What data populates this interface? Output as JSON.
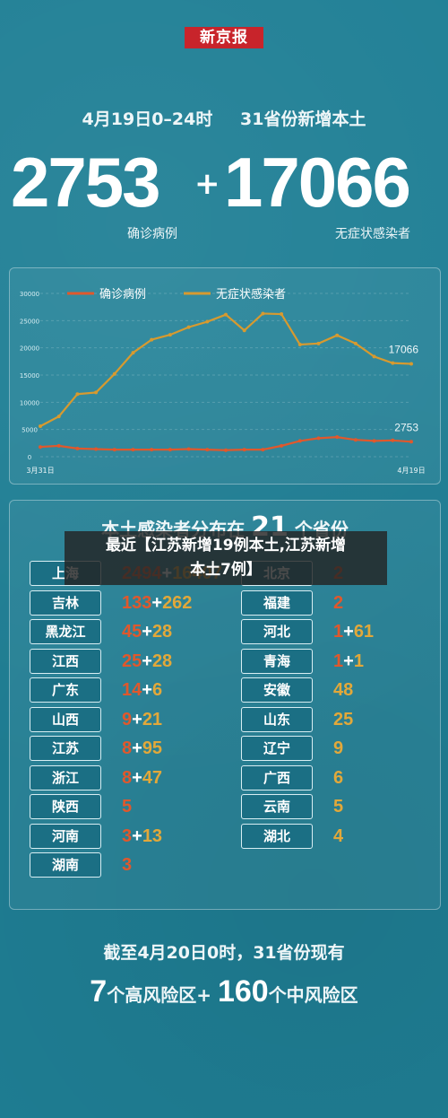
{
  "brand": {
    "logo_text": "新京报"
  },
  "header": {
    "date_text": "4月19日0–24时",
    "scope_text": "31省份新增本土",
    "confirmed_count": "2753",
    "plus": "+",
    "asymptomatic_count": "17066",
    "confirmed_label": "确诊病例",
    "asymptomatic_label": "无症状感染者"
  },
  "chart_data": {
    "type": "line",
    "x_start_label": "3月31日",
    "x_end_label": "4月19日",
    "ylim": [
      0,
      30000
    ],
    "y_ticks": [
      "0",
      "5000",
      "10000",
      "15000",
      "20000",
      "25000",
      "30000"
    ],
    "series": [
      {
        "name": "确诊病例",
        "color": "#e0582c",
        "values": [
          1800,
          2000,
          1500,
          1400,
          1300,
          1300,
          1300,
          1300,
          1400,
          1300,
          1200,
          1300,
          1300,
          2000,
          2900,
          3400,
          3600,
          3100,
          2900,
          3000,
          2753
        ],
        "end_label": "2753"
      },
      {
        "name": "无症状感染者",
        "color": "#d79a2f",
        "values": [
          5600,
          7400,
          11500,
          11800,
          15200,
          19100,
          21500,
          22400,
          23800,
          24800,
          26100,
          23200,
          26300,
          26200,
          20600,
          20800,
          22300,
          20800,
          18400,
          17200,
          17066
        ],
        "end_label": "17066"
      }
    ]
  },
  "distribution": {
    "title_prefix": "本土感染者分布在",
    "title_count": "21",
    "title_suffix": "个省份",
    "left": [
      {
        "name": "上海",
        "confirmed": "2494",
        "asymptomatic": "16407"
      },
      {
        "name": "吉林",
        "confirmed": "133",
        "asymptomatic": "262"
      },
      {
        "name": "黑龙江",
        "confirmed": "45",
        "asymptomatic": "28"
      },
      {
        "name": "江西",
        "confirmed": "25",
        "asymptomatic": "28"
      },
      {
        "name": "广东",
        "confirmed": "14",
        "asymptomatic": "6"
      },
      {
        "name": "山西",
        "confirmed": "9",
        "asymptomatic": "21"
      },
      {
        "name": "江苏",
        "confirmed": "8",
        "asymptomatic": "95"
      },
      {
        "name": "浙江",
        "confirmed": "8",
        "asymptomatic": "47"
      },
      {
        "name": "陕西",
        "confirmed": "5",
        "asymptomatic": ""
      },
      {
        "name": "河南",
        "confirmed": "3",
        "asymptomatic": "13"
      },
      {
        "name": "湖南",
        "confirmed": "3",
        "asymptomatic": ""
      }
    ],
    "right": [
      {
        "name": "北京",
        "confirmed": "2",
        "asymptomatic": ""
      },
      {
        "name": "福建",
        "confirmed": "2",
        "asymptomatic": ""
      },
      {
        "name": "河北",
        "confirmed": "1",
        "asymptomatic": "61"
      },
      {
        "name": "青海",
        "confirmed": "1",
        "asymptomatic": "1"
      },
      {
        "name": "安徽",
        "confirmed": "",
        "asymptomatic": "48"
      },
      {
        "name": "山东",
        "confirmed": "",
        "asymptomatic": "25"
      },
      {
        "name": "辽宁",
        "confirmed": "",
        "asymptomatic": "9"
      },
      {
        "name": "广西",
        "confirmed": "",
        "asymptomatic": "6"
      },
      {
        "name": "云南",
        "confirmed": "",
        "asymptomatic": "5"
      },
      {
        "name": "湖北",
        "confirmed": "",
        "asymptomatic": "4"
      }
    ]
  },
  "overlay": {
    "text_line1": "最近【江苏新增19例本土,江苏新增",
    "text_line2": "本土7例】"
  },
  "footer": {
    "line1": "截至4月20日0时，31省份现有",
    "high_count": "7",
    "high_label": "个高风险区+",
    "mid_count": "160",
    "mid_label": "个中风险区"
  }
}
